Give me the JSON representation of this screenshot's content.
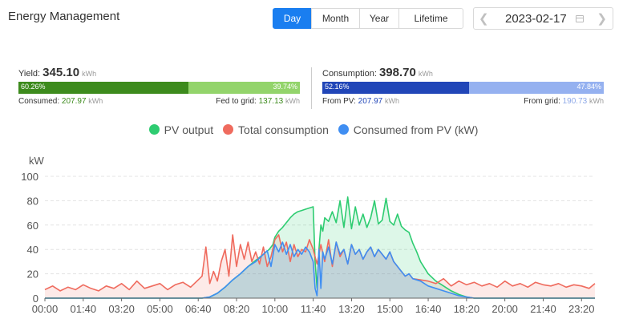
{
  "header": {
    "title": "Energy Management"
  },
  "period_tabs": [
    {
      "label": "Day",
      "active": true
    },
    {
      "label": "Month",
      "active": false
    },
    {
      "label": "Year",
      "active": false
    },
    {
      "label": "Lifetime",
      "active": false
    }
  ],
  "date_picker": {
    "value": "2023-02-17",
    "prev_icon": "chevron-left-icon",
    "next_icon": "chevron-right-icon",
    "calendar_icon": "calendar-icon"
  },
  "yield": {
    "label": "Yield:",
    "value": "345.10",
    "unit": "kWh",
    "bar": {
      "left_pct_label": "60.26%",
      "right_pct_label": "39.74%",
      "left_fraction": 0.6026
    },
    "consumed_label": "Consumed:",
    "consumed_value": "207.97",
    "consumed_unit": "kWh",
    "fed_label": "Fed to grid:",
    "fed_value": "137.13",
    "fed_unit": "kWh"
  },
  "consumption": {
    "label": "Consumption:",
    "value": "398.70",
    "unit": "kWh",
    "bar": {
      "left_pct_label": "52.16%",
      "right_pct_label": "47.84%",
      "left_fraction": 0.5216
    },
    "pv_label": "From PV:",
    "pv_value": "207.97",
    "pv_unit": "kWh",
    "grid_label": "From grid:",
    "grid_value": "190.73",
    "grid_unit": "kWh"
  },
  "colors": {
    "accent": "#1a7ef0",
    "yield_dark": "#3d8b1d",
    "yield_light": "#93d46b",
    "cons_dark": "#2146b8",
    "cons_light": "#95b1f0",
    "pv_output": "#2ecc71",
    "total_consumption": "#ef6b5e",
    "consumed_from_pv": "#3f8ef2"
  },
  "legend": [
    {
      "name": "PV output",
      "color": "#2ecc71"
    },
    {
      "name": "Total consumption",
      "color": "#ef6b5e"
    },
    {
      "name": "Consumed from PV (kW)",
      "color": "#3f8ef2"
    }
  ],
  "chart_data": {
    "type": "line",
    "ylabel": "kW",
    "ylim": [
      0,
      100
    ],
    "yticks": [
      0,
      20,
      40,
      60,
      80,
      100
    ],
    "xlim": [
      "00:00",
      "23:55"
    ],
    "xticks": [
      "00:00",
      "01:40",
      "03:20",
      "05:00",
      "06:40",
      "08:20",
      "10:00",
      "11:40",
      "13:20",
      "15:00",
      "16:40",
      "18:20",
      "20:00",
      "21:40",
      "23:20"
    ],
    "grid": "horizontal dashed",
    "legend_position": "top-center",
    "series": [
      {
        "name": "PV output",
        "x": [
          "00:00",
          "06:50",
          "07:10",
          "07:30",
          "07:50",
          "08:10",
          "08:30",
          "08:50",
          "09:10",
          "09:30",
          "09:45",
          "09:55",
          "10:00",
          "10:10",
          "10:20",
          "10:30",
          "10:40",
          "10:50",
          "11:00",
          "11:10",
          "11:20",
          "11:30",
          "11:40",
          "11:45",
          "11:50",
          "11:55",
          "12:00",
          "12:05",
          "12:10",
          "12:20",
          "12:30",
          "12:40",
          "12:50",
          "13:00",
          "13:10",
          "13:20",
          "13:30",
          "13:40",
          "13:50",
          "14:00",
          "14:10",
          "14:20",
          "14:30",
          "14:40",
          "14:50",
          "15:00",
          "15:10",
          "15:20",
          "15:30",
          "15:40",
          "15:50",
          "16:00",
          "16:10",
          "16:20",
          "16:40",
          "17:00",
          "17:20",
          "17:40",
          "18:00",
          "18:20",
          "18:40",
          "23:55"
        ],
        "values": [
          0,
          0,
          1,
          4,
          9,
          15,
          20,
          26,
          31,
          36,
          40,
          44,
          50,
          55,
          58,
          62,
          66,
          69,
          71,
          72,
          73,
          74,
          75,
          30,
          8,
          40,
          60,
          55,
          66,
          63,
          71,
          62,
          80,
          58,
          83,
          57,
          75,
          60,
          69,
          58,
          66,
          80,
          61,
          64,
          82,
          63,
          60,
          69,
          59,
          56,
          54,
          45,
          38,
          30,
          20,
          14,
          10,
          6,
          3,
          1,
          0,
          0
        ]
      },
      {
        "name": "Total consumption",
        "x": [
          "00:00",
          "00:20",
          "00:40",
          "01:00",
          "01:20",
          "01:40",
          "02:00",
          "02:20",
          "02:40",
          "03:00",
          "03:20",
          "03:40",
          "04:00",
          "04:20",
          "04:40",
          "05:00",
          "05:20",
          "05:40",
          "06:00",
          "06:20",
          "06:40",
          "06:50",
          "07:00",
          "07:10",
          "07:20",
          "07:30",
          "07:40",
          "07:50",
          "08:00",
          "08:10",
          "08:20",
          "08:30",
          "08:40",
          "08:50",
          "09:00",
          "09:10",
          "09:20",
          "09:30",
          "09:40",
          "09:50",
          "10:00",
          "10:10",
          "10:20",
          "10:30",
          "10:40",
          "10:50",
          "11:00",
          "11:10",
          "11:20",
          "11:30",
          "11:40",
          "11:50",
          "12:00",
          "12:10",
          "12:20",
          "12:30",
          "12:40",
          "12:50",
          "13:00",
          "13:10",
          "13:20",
          "13:30",
          "13:40",
          "13:50",
          "14:00",
          "14:10",
          "14:20",
          "14:30",
          "14:40",
          "14:50",
          "15:00",
          "15:10",
          "15:20",
          "15:30",
          "15:40",
          "15:50",
          "16:00",
          "16:20",
          "16:40",
          "17:00",
          "17:20",
          "17:40",
          "18:00",
          "18:20",
          "18:40",
          "19:00",
          "19:20",
          "19:40",
          "20:00",
          "20:20",
          "20:40",
          "21:00",
          "21:20",
          "21:40",
          "22:00",
          "22:20",
          "22:40",
          "23:00",
          "23:20",
          "23:40",
          "23:55"
        ],
        "values": [
          7,
          10,
          6,
          9,
          7,
          11,
          8,
          6,
          10,
          8,
          12,
          7,
          14,
          8,
          10,
          12,
          7,
          11,
          13,
          9,
          15,
          18,
          42,
          12,
          22,
          14,
          30,
          40,
          18,
          52,
          26,
          44,
          32,
          46,
          30,
          38,
          28,
          42,
          26,
          34,
          48,
          52,
          38,
          46,
          30,
          44,
          34,
          40,
          38,
          48,
          40,
          28,
          44,
          30,
          48,
          26,
          46,
          34,
          40,
          28,
          44,
          36,
          40,
          32,
          38,
          42,
          34,
          40,
          36,
          32,
          38,
          30,
          26,
          22,
          18,
          20,
          16,
          15,
          14,
          12,
          16,
          10,
          14,
          11,
          13,
          10,
          12,
          9,
          14,
          10,
          12,
          9,
          13,
          11,
          10,
          12,
          9,
          11,
          10,
          8,
          12
        ]
      },
      {
        "name": "Consumed from PV (kW)",
        "x": [
          "00:00",
          "06:50",
          "07:10",
          "07:30",
          "07:50",
          "08:10",
          "08:30",
          "08:50",
          "09:10",
          "09:30",
          "09:40",
          "09:50",
          "10:00",
          "10:10",
          "10:20",
          "10:30",
          "10:40",
          "10:50",
          "11:00",
          "11:10",
          "11:20",
          "11:30",
          "11:40",
          "11:45",
          "11:50",
          "11:55",
          "12:00",
          "12:05",
          "12:10",
          "12:20",
          "12:30",
          "12:40",
          "12:50",
          "13:00",
          "13:10",
          "13:20",
          "13:30",
          "13:40",
          "13:50",
          "14:00",
          "14:10",
          "14:20",
          "14:30",
          "14:40",
          "14:50",
          "15:00",
          "15:10",
          "15:20",
          "15:30",
          "15:40",
          "15:50",
          "16:00",
          "16:10",
          "16:20",
          "16:40",
          "17:00",
          "17:20",
          "17:40",
          "18:00",
          "18:20",
          "18:40",
          "23:55"
        ],
        "values": [
          0,
          0,
          1,
          4,
          9,
          15,
          20,
          26,
          30,
          36,
          39,
          26,
          44,
          38,
          46,
          36,
          44,
          34,
          40,
          36,
          42,
          38,
          30,
          8,
          2,
          40,
          8,
          38,
          32,
          42,
          28,
          46,
          36,
          40,
          28,
          44,
          36,
          40,
          32,
          38,
          42,
          34,
          40,
          36,
          32,
          38,
          30,
          26,
          22,
          18,
          20,
          16,
          15,
          14,
          10,
          8,
          6,
          4,
          2,
          1,
          0,
          0
        ]
      }
    ]
  }
}
